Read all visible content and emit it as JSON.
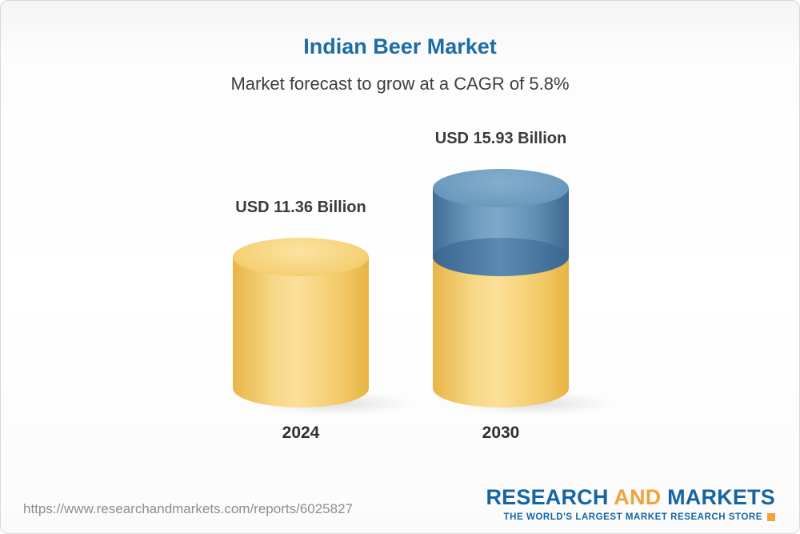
{
  "header": {
    "title": "Indian Beer Market",
    "subtitle": "Market forecast to grow at a CAGR of 5.8%"
  },
  "chart_data": {
    "type": "bar",
    "title": "Indian Beer Market",
    "subtitle": "Market forecast to grow at a CAGR of 5.8%",
    "cagr_percent": 5.8,
    "unit": "USD Billion",
    "categories": [
      "2024",
      "2030"
    ],
    "values": [
      11.36,
      15.93
    ],
    "value_labels": [
      "USD 11.36 Billion",
      "USD 15.93 Billion"
    ],
    "series": [
      {
        "name": "2024 base value",
        "values": [
          11.36,
          11.36
        ],
        "color": "#f3cb69"
      },
      {
        "name": "Growth to 2030",
        "values": [
          0,
          4.57
        ],
        "color": "#5d8cb3"
      }
    ],
    "layout": {
      "grid": false,
      "legend": "none",
      "bar_style": "3d-cylinder",
      "base_color": "#f3cb69",
      "growth_color": "#5d8cb3",
      "ylim": [
        0,
        15.93
      ]
    }
  },
  "footer": {
    "url": "https://www.researchandmarkets.com/reports/6025827",
    "logo": {
      "research": "RESEARCH",
      "and": "AND",
      "markets": "MARKETS",
      "tagline": "THE WORLD'S LARGEST MARKET RESEARCH STORE"
    }
  }
}
